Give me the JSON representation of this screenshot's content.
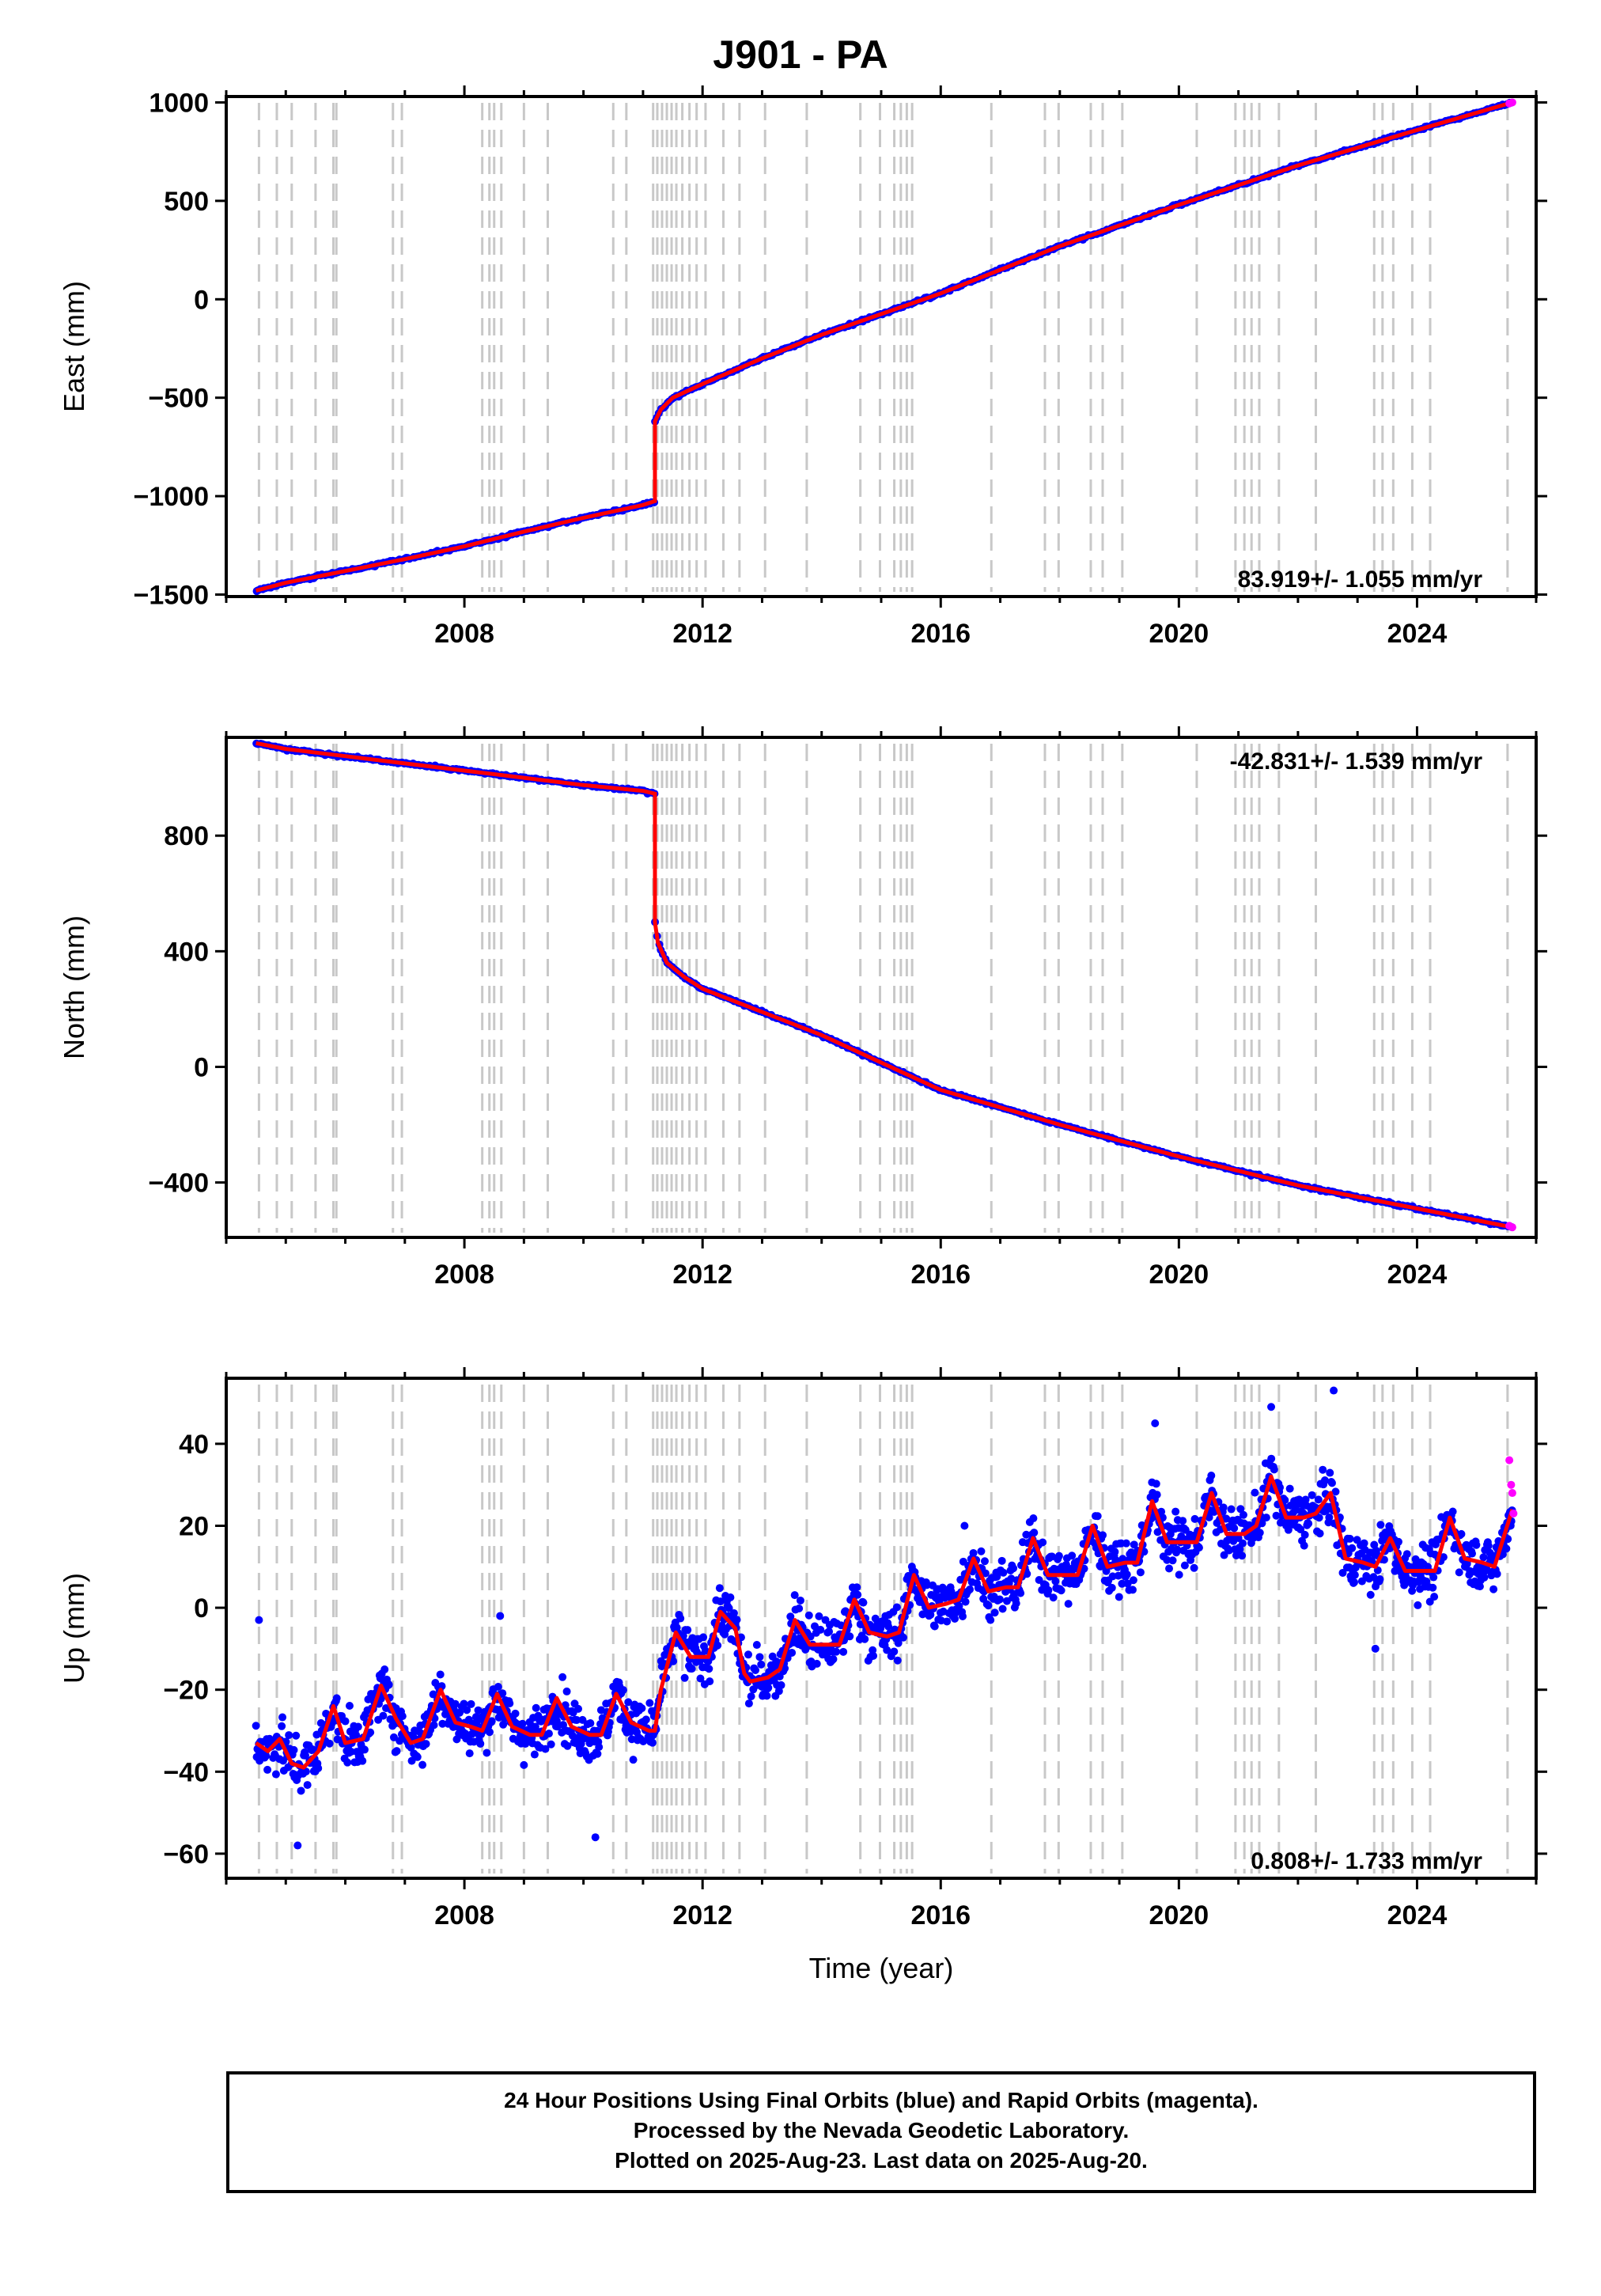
{
  "title": "J901 - PA",
  "footer": {
    "line1": "24 Hour Positions Using Final Orbits (blue) and Rapid Orbits (magenta).",
    "line2": "Processed by the Nevada Geodetic Laboratory.",
    "line3": "Plotted on 2025-Aug-23. Last data on 2025-Aug-20."
  },
  "colors": {
    "final_orbits": "#0000ff",
    "rapid_orbits": "#ff00ff",
    "model": "#ff0000",
    "event_lines": "#c8c8c8"
  },
  "chart_data": [
    {
      "type": "scatter",
      "id": "east",
      "ylabel": "East (mm)",
      "xlabel": "",
      "xlim": [
        2004.0,
        2026.0
      ],
      "ylim": [
        -1510,
        1030
      ],
      "xticks": [
        2008,
        2012,
        2016,
        2020,
        2024
      ],
      "yticks": [
        -1500,
        -1000,
        -500,
        0,
        500,
        1000
      ],
      "ytick_labels": [
        "−1500",
        "−1000",
        "−500",
        "0",
        "500",
        "1000"
      ],
      "rate_label": "83.919+/- 1.055 mm/yr",
      "rate_position": "bottom-right",
      "grid": false,
      "segments": [
        {
          "x": [
            2004.5,
            2005.0,
            2006.0,
            2007.0,
            2008.0,
            2009.0,
            2010.0,
            2011.0,
            2011.2
          ],
          "y": [
            -1480,
            -1440,
            -1380,
            -1320,
            -1255,
            -1180,
            -1110,
            -1045,
            -1025
          ]
        },
        {
          "x": [
            2011.2,
            2011.3,
            2011.5,
            2012.0,
            2013.0,
            2014.0,
            2016.0,
            2018.0,
            2020.0,
            2022.0,
            2024.0,
            2025.6
          ],
          "y": [
            -620,
            -560,
            -500,
            -430,
            -300,
            -180,
            30,
            270,
            480,
            680,
            860,
            1000
          ]
        }
      ],
      "rapid_points": {
        "x": [
          2025.55,
          2025.6
        ],
        "y": [
          995,
          1000
        ]
      }
    },
    {
      "type": "scatter",
      "id": "north",
      "ylabel": "North (mm)",
      "xlabel": "",
      "xlim": [
        2004.0,
        2026.0
      ],
      "ylim": [
        -590,
        1140
      ],
      "xticks": [
        2008,
        2012,
        2016,
        2020,
        2024
      ],
      "yticks": [
        -400,
        0,
        400,
        800
      ],
      "ytick_labels": [
        "−400",
        "0",
        "400",
        "800"
      ],
      "rate_label": "-42.831+/- 1.539 mm/yr",
      "rate_position": "top-right",
      "grid": false,
      "segments": [
        {
          "x": [
            2004.5,
            2005.0,
            2006.0,
            2007.0,
            2008.0,
            2009.0,
            2010.0,
            2011.0,
            2011.2
          ],
          "y": [
            1120,
            1100,
            1075,
            1050,
            1025,
            1000,
            975,
            955,
            945
          ]
        },
        {
          "x": [
            2011.2,
            2011.25,
            2011.4,
            2011.7,
            2012.0,
            2013.0,
            2014.0,
            2016.0,
            2018.0,
            2020.0,
            2022.0,
            2024.0,
            2025.6
          ],
          "y": [
            500,
            430,
            360,
            310,
            270,
            190,
            110,
            -80,
            -200,
            -310,
            -410,
            -490,
            -555
          ]
        }
      ],
      "rapid_points": {
        "x": [
          2025.55,
          2025.6
        ],
        "y": [
          -550,
          -555
        ]
      }
    },
    {
      "type": "scatter",
      "id": "up",
      "ylabel": "Up (mm)",
      "xlabel": "Time (year)",
      "xlim": [
        2004.0,
        2026.0
      ],
      "ylim": [
        -66,
        56
      ],
      "xticks": [
        2008,
        2012,
        2016,
        2020,
        2024
      ],
      "yticks": [
        -60,
        -40,
        -20,
        0,
        20,
        40
      ],
      "ytick_labels": [
        "−60",
        "−40",
        "−20",
        "0",
        "20",
        "40"
      ],
      "rate_label": "0.808+/- 1.733 mm/yr",
      "rate_position": "bottom-right",
      "grid": false,
      "model": {
        "x": [
          2004.5,
          2004.7,
          2004.9,
          2005.1,
          2005.3,
          2005.55,
          2005.8,
          2006.0,
          2006.3,
          2006.6,
          2006.85,
          2007.1,
          2007.3,
          2007.6,
          2007.85,
          2008.1,
          2008.3,
          2008.55,
          2008.8,
          2009.1,
          2009.3,
          2009.55,
          2009.8,
          2010.1,
          2010.3,
          2010.55,
          2010.8,
          2011.1,
          2011.2,
          2011.3,
          2011.55,
          2011.8,
          2012.1,
          2012.3,
          2012.55,
          2012.7,
          2012.8,
          2013.1,
          2013.3,
          2013.55,
          2013.8,
          2014.1,
          2014.3,
          2014.55,
          2014.8,
          2015.1,
          2015.3,
          2015.55,
          2015.8,
          2016.1,
          2016.3,
          2016.55,
          2016.8,
          2017.1,
          2017.3,
          2017.55,
          2017.8,
          2018.1,
          2018.3,
          2018.55,
          2018.8,
          2019.1,
          2019.3,
          2019.55,
          2019.8,
          2020.1,
          2020.3,
          2020.55,
          2020.8,
          2021.1,
          2021.3,
          2021.55,
          2021.8,
          2022.1,
          2022.3,
          2022.55,
          2022.8,
          2023.1,
          2023.3,
          2023.55,
          2023.8,
          2024.1,
          2024.3,
          2024.55,
          2024.8,
          2025.1,
          2025.3,
          2025.6
        ],
        "y": [
          -33,
          -35,
          -32,
          -38,
          -39,
          -35,
          -24,
          -33,
          -32,
          -19,
          -27,
          -33,
          -32,
          -20,
          -28,
          -29,
          -30,
          -21,
          -29,
          -31,
          -31,
          -22,
          -29,
          -31,
          -31,
          -21,
          -28,
          -30,
          -30,
          -20,
          -6,
          -12,
          -12,
          -1,
          -5,
          -16,
          -18,
          -17,
          -15,
          -3,
          -9,
          -9,
          -9,
          2,
          -6,
          -7,
          -6,
          8,
          0,
          1,
          2,
          12,
          4,
          5,
          5,
          17,
          8,
          8,
          8,
          20,
          10,
          11,
          11,
          26,
          16,
          16,
          16,
          28,
          18,
          18,
          20,
          32,
          22,
          22,
          23,
          28,
          12,
          11,
          10,
          17,
          9,
          9,
          9,
          22,
          12,
          11,
          10,
          24
        ]
      },
      "scatter_spread_mm": 5.5,
      "outliers": {
        "x": [
          2004.55,
          2005.2,
          2008.6,
          2010.2,
          2016.4,
          2019.6,
          2021.55,
          2022.6,
          2023.3
        ],
        "y": [
          -3,
          -58,
          -2,
          -56,
          20,
          45,
          49,
          53,
          -10
        ]
      },
      "rapid_points": {
        "x": [
          2025.55,
          2025.58,
          2025.6,
          2025.62
        ],
        "y": [
          36,
          30,
          28,
          23
        ]
      }
    }
  ],
  "event_years": [
    2004.55,
    2004.85,
    2005.1,
    2005.5,
    2005.8,
    2005.85,
    2006.8,
    2006.95,
    2008.3,
    2008.42,
    2008.5,
    2008.62,
    2009.0,
    2009.4,
    2010.5,
    2010.72,
    2011.17,
    2011.24,
    2011.32,
    2011.4,
    2011.48,
    2011.56,
    2011.66,
    2011.78,
    2011.9,
    2012.05,
    2012.35,
    2012.62,
    2013.05,
    2013.75,
    2014.65,
    2014.98,
    2015.22,
    2015.33,
    2015.43,
    2015.52,
    2016.85,
    2017.75,
    2017.98,
    2018.52,
    2018.72,
    2019.05,
    2020.3,
    2020.95,
    2021.1,
    2021.22,
    2021.35,
    2021.68,
    2022.3,
    2023.28,
    2023.42,
    2023.6,
    2023.92,
    2024.22,
    2025.52
  ]
}
